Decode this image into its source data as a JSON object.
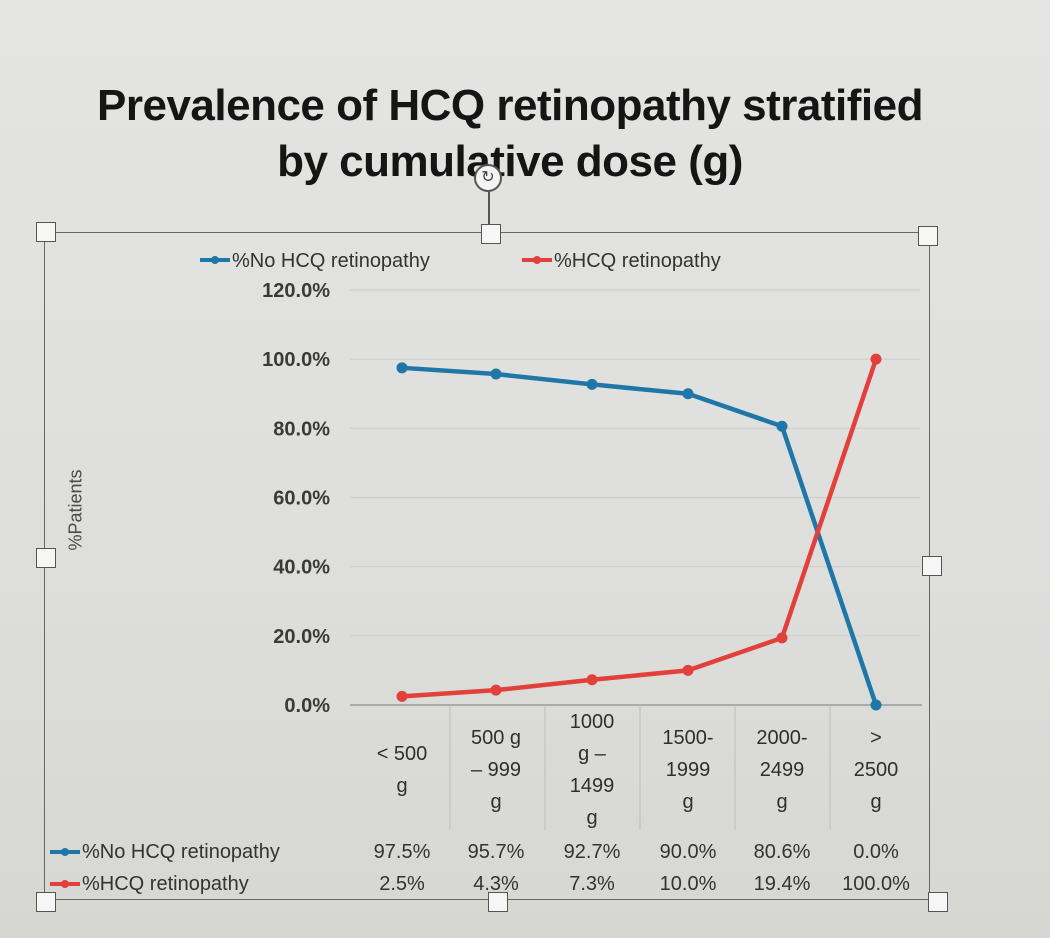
{
  "slide": {
    "title_line1": "Prevalence of HCQ retinopathy stratified",
    "title_line2": "by cumulative dose (g)"
  },
  "chart_data": {
    "type": "line",
    "title": "Prevalence of HCQ retinopathy stratified by cumulative dose (g)",
    "ylabel": "%Patients",
    "xlabel": "",
    "ylim": [
      0,
      120
    ],
    "y_ticks": [
      "0.0%",
      "20.0%",
      "40.0%",
      "60.0%",
      "80.0%",
      "100.0%",
      "120.0%"
    ],
    "grid": true,
    "legend_position": "top",
    "categories": [
      [
        "< 500",
        "g"
      ],
      [
        "500 g",
        "– 999",
        "g"
      ],
      [
        "1000",
        "g –",
        "1499",
        "g"
      ],
      [
        "1500-",
        "1999",
        "g"
      ],
      [
        "2000-",
        "2499",
        "g"
      ],
      [
        ">",
        "2500",
        "g"
      ]
    ],
    "series": [
      {
        "name": "%No HCQ retinopathy",
        "color": "#1f77a8",
        "values": [
          97.5,
          95.7,
          92.7,
          90.0,
          80.6,
          0.0
        ],
        "labels": [
          "97.5%",
          "95.7%",
          "92.7%",
          "90.0%",
          "80.6%",
          "0.0%"
        ]
      },
      {
        "name": "%HCQ retinopathy",
        "color": "#e2403a",
        "values": [
          2.5,
          4.3,
          7.3,
          10.0,
          19.4,
          100.0
        ],
        "labels": [
          "2.5%",
          "4.3%",
          "7.3%",
          "10.0%",
          "19.4%",
          "100.0%"
        ]
      }
    ]
  }
}
